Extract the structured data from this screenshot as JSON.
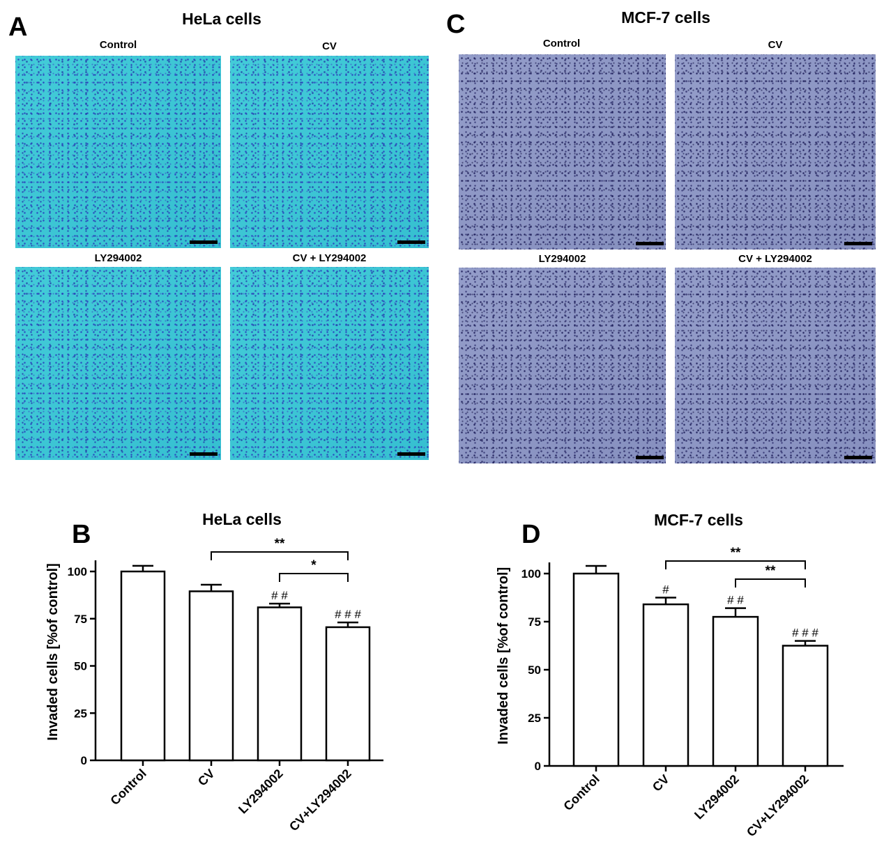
{
  "panels": {
    "A": {
      "letter": "A",
      "title": "HeLa cells",
      "images": [
        "Control",
        "CV",
        "LY294002",
        "CV + LY294002"
      ]
    },
    "C": {
      "letter": "C",
      "title": "MCF-7 cells",
      "images": [
        "Control",
        "CV",
        "LY294002",
        "CV + LY294002"
      ]
    },
    "B": {
      "letter": "B"
    },
    "D": {
      "letter": "D"
    }
  },
  "colors": {
    "hela_stain": "#39c9d6",
    "mcf7_stain": "#8d97c6",
    "cells_hela": "#2a3cbe",
    "cells_mcf7": "#191955"
  },
  "chart_data": [
    {
      "id": "B",
      "type": "bar",
      "title": "HeLa cells",
      "xlabel": "",
      "ylabel": "Invaded cells [%of control]",
      "categories": [
        "Control",
        "CV",
        "LY294002",
        "CV+LY294002"
      ],
      "values": [
        100,
        89.5,
        81,
        70.5
      ],
      "errors": [
        3,
        3.5,
        2,
        2.5
      ],
      "ylim": [
        0,
        100
      ],
      "yticks": [
        0,
        25,
        50,
        75,
        100
      ],
      "markers": [
        "",
        "",
        "# #",
        "# # #"
      ],
      "comparisons": [
        {
          "from": 1,
          "to": 3,
          "label": "**"
        },
        {
          "from": 2,
          "to": 3,
          "label": "*"
        }
      ]
    },
    {
      "id": "D",
      "type": "bar",
      "title": "MCF-7 cells",
      "xlabel": "",
      "ylabel": "Invaded cells [%of control]",
      "categories": [
        "Control",
        "CV",
        "LY294002",
        "CV+LY294002"
      ],
      "values": [
        100,
        84,
        77.5,
        62.5
      ],
      "errors": [
        4,
        3.5,
        4.5,
        2.5
      ],
      "ylim": [
        0,
        100
      ],
      "yticks": [
        0,
        25,
        50,
        75,
        100
      ],
      "markers": [
        "",
        "#",
        "# #",
        "# # #"
      ],
      "comparisons": [
        {
          "from": 1,
          "to": 3,
          "label": "**"
        },
        {
          "from": 2,
          "to": 3,
          "label": "**"
        }
      ]
    }
  ]
}
